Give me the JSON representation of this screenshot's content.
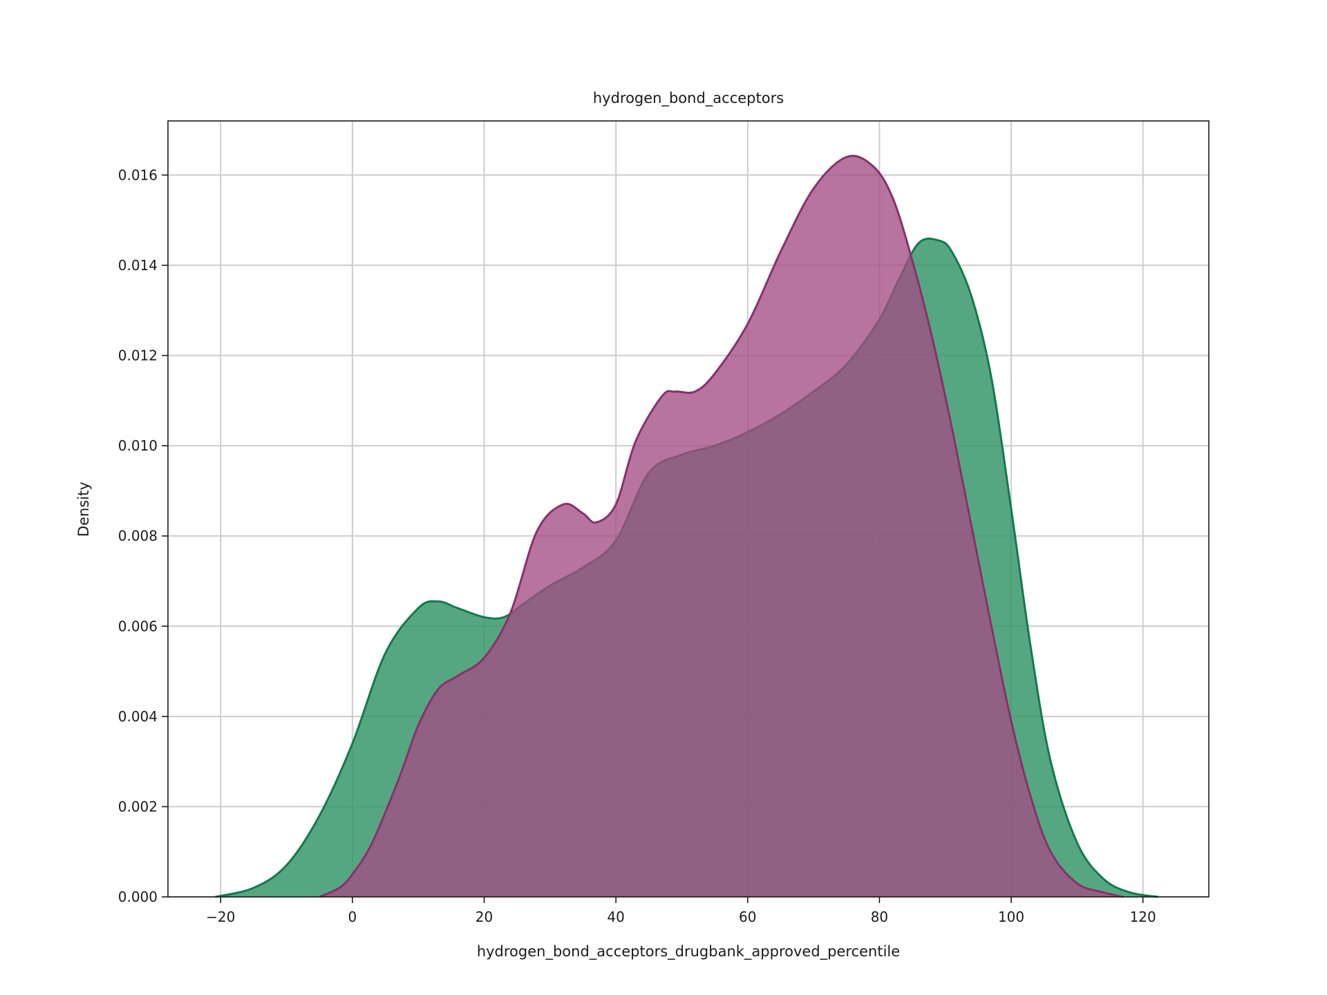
{
  "chart_data": {
    "type": "area",
    "title": "hydrogen_bond_acceptors",
    "xlabel": "hydrogen_bond_acceptors_drugbank_approved_percentile",
    "ylabel": "Density",
    "xlim": [
      -28,
      130
    ],
    "ylim": [
      0,
      0.0172
    ],
    "xticks": [
      -20,
      0,
      20,
      40,
      60,
      80,
      100,
      120
    ],
    "yticks": [
      0.0,
      0.002,
      0.004,
      0.006,
      0.008,
      0.01,
      0.012,
      0.014,
      0.016
    ],
    "xtick_labels": [
      "−20",
      "0",
      "20",
      "40",
      "60",
      "80",
      "100",
      "120"
    ],
    "ytick_labels": [
      "0.000",
      "0.002",
      "0.004",
      "0.006",
      "0.008",
      "0.010",
      "0.012",
      "0.014",
      "0.016"
    ],
    "grid": true,
    "legend": "none",
    "series": [
      {
        "color": "#127a4a",
        "fill_color": "#2f9466",
        "fill_opacity": 0.82,
        "x": [
          -20.8,
          -15,
          -10,
          -5,
          0,
          5,
          10,
          13,
          16,
          20,
          23,
          26,
          30,
          35,
          40,
          45,
          50,
          55,
          60,
          65,
          70,
          75,
          80,
          83,
          86,
          89,
          91,
          94,
          97,
          100,
          103,
          106,
          110,
          114,
          118,
          122.3
        ],
        "values": [
          0.0,
          0.0002,
          0.0007,
          0.0018,
          0.0034,
          0.0054,
          0.0064,
          0.00655,
          0.0064,
          0.0062,
          0.0062,
          0.0065,
          0.0069,
          0.0073,
          0.0079,
          0.0094,
          0.0098,
          0.01,
          0.0103,
          0.0107,
          0.0112,
          0.0118,
          0.0128,
          0.0137,
          0.0145,
          0.01455,
          0.0143,
          0.0133,
          0.0115,
          0.0086,
          0.0055,
          0.003,
          0.0012,
          0.0004,
          0.0001,
          0.0
        ]
      },
      {
        "color": "#8b2f6c",
        "fill_color": "#a14d83",
        "fill_opacity": 0.78,
        "x": [
          -5,
          -2,
          0,
          3,
          7,
          10,
          13,
          16,
          20,
          24,
          28,
          32,
          35,
          37,
          40,
          43,
          47,
          49,
          52,
          55,
          60,
          65,
          70,
          75,
          79,
          82,
          85,
          88,
          91,
          94,
          97,
          100,
          103,
          106,
          110,
          114,
          117
        ],
        "values": [
          0.0,
          0.0002,
          0.0005,
          0.0012,
          0.0026,
          0.0038,
          0.0046,
          0.0049,
          0.0053,
          0.0063,
          0.0081,
          0.0087,
          0.0085,
          0.0083,
          0.0087,
          0.0101,
          0.0111,
          0.0112,
          0.0112,
          0.0116,
          0.0127,
          0.0143,
          0.0157,
          0.0164,
          0.0162,
          0.0155,
          0.0141,
          0.0124,
          0.0104,
          0.0082,
          0.006,
          0.0039,
          0.0022,
          0.001,
          0.0003,
          0.0001,
          0.0
        ]
      }
    ]
  }
}
